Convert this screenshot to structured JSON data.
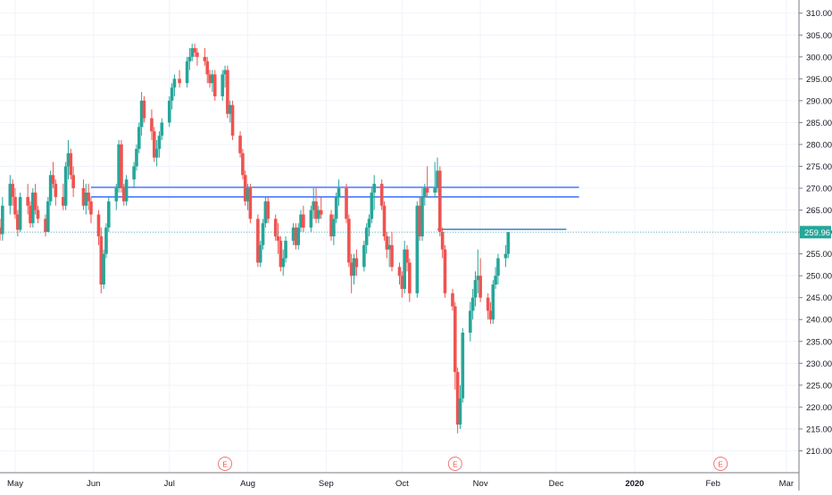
{
  "chart_data": {
    "type": "candlestick",
    "title": "",
    "xlabel": "",
    "ylabel": "",
    "ylim": [
      205,
      313
    ],
    "y_ticks": [
      "210.00",
      "215.00",
      "220.00",
      "225.00",
      "230.00",
      "235.00",
      "240.00",
      "245.00",
      "250.00",
      "255.00",
      "260.00",
      "265.00",
      "270.00",
      "275.00",
      "280.00",
      "285.00",
      "290.00",
      "295.00",
      "300.00",
      "305.00",
      "310.00"
    ],
    "x_labels": [
      {
        "label": "May",
        "date": "2019-05-01"
      },
      {
        "label": "Jun",
        "date": "2019-06-01"
      },
      {
        "label": "Jul",
        "date": "2019-07-01"
      },
      {
        "label": "Aug",
        "date": "2019-08-01"
      },
      {
        "label": "Sep",
        "date": "2019-09-01"
      },
      {
        "label": "Oct",
        "date": "2019-10-01"
      },
      {
        "label": "Nov",
        "date": "2019-11-01"
      },
      {
        "label": "Dec",
        "date": "2019-12-01"
      },
      {
        "label": "2020",
        "date": "2020-01-01"
      },
      {
        "label": "Feb",
        "date": "2020-02-01"
      },
      {
        "label": "Mar",
        "date": "2020-03-01"
      }
    ],
    "x_range": [
      "2019-04-25",
      "2020-03-06"
    ],
    "last_price": "259.96",
    "earnings_markers": [
      {
        "label": "E",
        "date": "2019-07-23"
      },
      {
        "label": "E",
        "date": "2019-10-22"
      },
      {
        "label": "E",
        "date": "2020-02-04"
      }
    ],
    "levels": [
      {
        "price": 270.2,
        "from": "2019-05-31",
        "to": "2019-12-10"
      },
      {
        "price": 268.0,
        "from": "2019-05-31",
        "to": "2019-12-10"
      },
      {
        "price": 260.6,
        "from": "2019-10-15",
        "to": "2019-12-05"
      }
    ],
    "colors": {
      "up": "#26a69a",
      "down": "#ef5350",
      "level": "#2962ff",
      "level_dark": "#1565c0",
      "price_label": "#26a69a",
      "earnings": "#ef5350"
    },
    "candles": [
      [
        "2019-04-25",
        261,
        263,
        258,
        259.5
      ],
      [
        "2019-04-26",
        259.5,
        268,
        258,
        266
      ],
      [
        "2019-04-29",
        266,
        273,
        264,
        271
      ],
      [
        "2019-04-30",
        271,
        272,
        266,
        268
      ],
      [
        "2019-05-01",
        268,
        270,
        263,
        264
      ],
      [
        "2019-05-02",
        264,
        265,
        259,
        260.5
      ],
      [
        "2019-05-03",
        260.5,
        269,
        260,
        268
      ],
      [
        "2019-05-06",
        268,
        271,
        264,
        266
      ],
      [
        "2019-05-07",
        266,
        267,
        261,
        262
      ],
      [
        "2019-05-08",
        262,
        270,
        261,
        269
      ],
      [
        "2019-05-09",
        269,
        271,
        264,
        265
      ],
      [
        "2019-05-10",
        265,
        266,
        262,
        263
      ],
      [
        "2019-05-13",
        263,
        264,
        259,
        260
      ],
      [
        "2019-05-14",
        260,
        268,
        260,
        267
      ],
      [
        "2019-05-15",
        267,
        274,
        266,
        273
      ],
      [
        "2019-05-16",
        273,
        276,
        270,
        271
      ],
      [
        "2019-05-17",
        271,
        272,
        266,
        268
      ],
      [
        "2019-05-20",
        268,
        271,
        265,
        266
      ],
      [
        "2019-05-21",
        266,
        276,
        265,
        275
      ],
      [
        "2019-05-22",
        275,
        281,
        272,
        278
      ],
      [
        "2019-05-23",
        278,
        279,
        272,
        273
      ],
      [
        "2019-05-24",
        273,
        275,
        268,
        270
      ],
      [
        "2019-05-28",
        270,
        272,
        265,
        266
      ],
      [
        "2019-05-29",
        266,
        271,
        264,
        269
      ],
      [
        "2019-05-30",
        269,
        271,
        265,
        267
      ],
      [
        "2019-05-31",
        267,
        268,
        262,
        264
      ],
      [
        "2019-06-03",
        264,
        265,
        257,
        259
      ],
      [
        "2019-06-04",
        259,
        261,
        246,
        248
      ],
      [
        "2019-06-05",
        248,
        256,
        247,
        255
      ],
      [
        "2019-06-06",
        255,
        262,
        254,
        261
      ],
      [
        "2019-06-07",
        261,
        268,
        260,
        267
      ],
      [
        "2019-06-10",
        267,
        271,
        265,
        270
      ],
      [
        "2019-06-11",
        270,
        281,
        269,
        280
      ],
      [
        "2019-06-12",
        280,
        281,
        269,
        270
      ],
      [
        "2019-06-13",
        270,
        271,
        266,
        267
      ],
      [
        "2019-06-14",
        267,
        273,
        266,
        272
      ],
      [
        "2019-06-17",
        272,
        276,
        270,
        275
      ],
      [
        "2019-06-18",
        275,
        280,
        274,
        279
      ],
      [
        "2019-06-19",
        279,
        285,
        278,
        284
      ],
      [
        "2019-06-20",
        284,
        292,
        282,
        290
      ],
      [
        "2019-06-21",
        290,
        291,
        285,
        286
      ],
      [
        "2019-06-24",
        286,
        288,
        281,
        283
      ],
      [
        "2019-06-25",
        283,
        284,
        276,
        277
      ],
      [
        "2019-06-26",
        277,
        281,
        275,
        279
      ],
      [
        "2019-06-27",
        279,
        283,
        277,
        282
      ],
      [
        "2019-06-28",
        282,
        286,
        281,
        285
      ],
      [
        "2019-07-01",
        285,
        291,
        284,
        290
      ],
      [
        "2019-07-02",
        290,
        294,
        288,
        293
      ],
      [
        "2019-07-03",
        293,
        296,
        291,
        295
      ],
      [
        "2019-07-05",
        295,
        297,
        293,
        294
      ],
      [
        "2019-07-08",
        294,
        300,
        293,
        299
      ],
      [
        "2019-07-09",
        299,
        302,
        297,
        300
      ],
      [
        "2019-07-10",
        300,
        303,
        299,
        302
      ],
      [
        "2019-07-11",
        302,
        303,
        300,
        301
      ],
      [
        "2019-07-12",
        301,
        302,
        298,
        300
      ],
      [
        "2019-07-15",
        300,
        302,
        298,
        299
      ],
      [
        "2019-07-16",
        299,
        300,
        294,
        296
      ],
      [
        "2019-07-17",
        296,
        297,
        293,
        294
      ],
      [
        "2019-07-18",
        294,
        297,
        292,
        296
      ],
      [
        "2019-07-19",
        296,
        297,
        290,
        291
      ],
      [
        "2019-07-22",
        291,
        297,
        290,
        296
      ],
      [
        "2019-07-23",
        296,
        298,
        293,
        297
      ],
      [
        "2019-07-24",
        297,
        298,
        286,
        287
      ],
      [
        "2019-07-25",
        287,
        290,
        285,
        289
      ],
      [
        "2019-07-26",
        289,
        290,
        281,
        282
      ],
      [
        "2019-07-29",
        282,
        283,
        277,
        278
      ],
      [
        "2019-07-30",
        278,
        279,
        272,
        273
      ],
      [
        "2019-07-31",
        273,
        274,
        266,
        267
      ],
      [
        "2019-08-01",
        267,
        271,
        265,
        270
      ],
      [
        "2019-08-02",
        270,
        271,
        262,
        263
      ],
      [
        "2019-08-05",
        263,
        264,
        252,
        253
      ],
      [
        "2019-08-06",
        253,
        258,
        252,
        257
      ],
      [
        "2019-08-07",
        257,
        263,
        256,
        262
      ],
      [
        "2019-08-08",
        262,
        268,
        261,
        267
      ],
      [
        "2019-08-09",
        267,
        268,
        262,
        263
      ],
      [
        "2019-08-12",
        263,
        264,
        258,
        259
      ],
      [
        "2019-08-13",
        259,
        262,
        255,
        258
      ],
      [
        "2019-08-14",
        258,
        259,
        251,
        252
      ],
      [
        "2019-08-15",
        252,
        256,
        250,
        254
      ],
      [
        "2019-08-16",
        254,
        259,
        253,
        258
      ],
      [
        "2019-08-19",
        258,
        262,
        257,
        261
      ],
      [
        "2019-08-20",
        261,
        262,
        256,
        257
      ],
      [
        "2019-08-21",
        257,
        262,
        256,
        261
      ],
      [
        "2019-08-22",
        261,
        265,
        260,
        264
      ],
      [
        "2019-08-23",
        264,
        266,
        260,
        261
      ],
      [
        "2019-08-26",
        261,
        266,
        260,
        265
      ],
      [
        "2019-08-27",
        265,
        270,
        263,
        267
      ],
      [
        "2019-08-28",
        267,
        270,
        262,
        263
      ],
      [
        "2019-08-29",
        263,
        266,
        262,
        265
      ],
      [
        "2019-08-30",
        265,
        268,
        263,
        264
      ],
      [
        "2019-09-03",
        264,
        265,
        258,
        259
      ],
      [
        "2019-09-04",
        259,
        264,
        257,
        263
      ],
      [
        "2019-09-05",
        263,
        269,
        262,
        268
      ],
      [
        "2019-09-06",
        268,
        272,
        266,
        270
      ],
      [
        "2019-09-09",
        270,
        271,
        262,
        263
      ],
      [
        "2019-09-10",
        263,
        264,
        252,
        253
      ],
      [
        "2019-09-11",
        253,
        255,
        246,
        250
      ],
      [
        "2019-09-12",
        250,
        255,
        248,
        254
      ],
      [
        "2019-09-13",
        254,
        256,
        250,
        252
      ],
      [
        "2019-09-16",
        252,
        258,
        251,
        257
      ],
      [
        "2019-09-17",
        257,
        262,
        255,
        261
      ],
      [
        "2019-09-18",
        261,
        264,
        259,
        263
      ],
      [
        "2019-09-19",
        263,
        270,
        262,
        269
      ],
      [
        "2019-09-20",
        269,
        273,
        265,
        271
      ],
      [
        "2019-09-23",
        271,
        272,
        265,
        266
      ],
      [
        "2019-09-24",
        266,
        267,
        258,
        259
      ],
      [
        "2019-09-25",
        259,
        260,
        254,
        256
      ],
      [
        "2019-09-26",
        256,
        259,
        252,
        257
      ],
      [
        "2019-09-27",
        257,
        260,
        251,
        252
      ],
      [
        "2019-09-30",
        252,
        253,
        248,
        250
      ],
      [
        "2019-10-01",
        250,
        251,
        245,
        247
      ],
      [
        "2019-10-02",
        247,
        258,
        246,
        256
      ],
      [
        "2019-10-03",
        256,
        257,
        251,
        253
      ],
      [
        "2019-10-04",
        253,
        254,
        244,
        246
      ],
      [
        "2019-10-07",
        246,
        267,
        245,
        266
      ],
      [
        "2019-10-08",
        266,
        268,
        258,
        259
      ],
      [
        "2019-10-09",
        259,
        270,
        258,
        268
      ],
      [
        "2019-10-10",
        268,
        271,
        266,
        270
      ],
      [
        "2019-10-11",
        270,
        275,
        268,
        269
      ],
      [
        "2019-10-14",
        269,
        276,
        268,
        270
      ],
      [
        "2019-10-15",
        270,
        277,
        269,
        274
      ],
      [
        "2019-10-16",
        274,
        275,
        259,
        260
      ],
      [
        "2019-10-17",
        260,
        261,
        254,
        256
      ],
      [
        "2019-10-18",
        256,
        257,
        245,
        246
      ],
      [
        "2019-10-21",
        246,
        247,
        242,
        243
      ],
      [
        "2019-10-22",
        243,
        244,
        224,
        228
      ],
      [
        "2019-10-23",
        228,
        229,
        214,
        216
      ],
      [
        "2019-10-24",
        216,
        225,
        215,
        222
      ],
      [
        "2019-10-25",
        222,
        238,
        221,
        237
      ],
      [
        "2019-10-28",
        237,
        244,
        235,
        242
      ],
      [
        "2019-10-29",
        242,
        247,
        240,
        245
      ],
      [
        "2019-10-30",
        245,
        251,
        243,
        249
      ],
      [
        "2019-10-31",
        249,
        256,
        246,
        250
      ],
      [
        "2019-11-01",
        250,
        254,
        244,
        245
      ],
      [
        "2019-11-04",
        245,
        246,
        240,
        242
      ],
      [
        "2019-11-05",
        242,
        244,
        239,
        240
      ],
      [
        "2019-11-06",
        240,
        249,
        239,
        248
      ],
      [
        "2019-11-07",
        248,
        252,
        247,
        250
      ],
      [
        "2019-11-08",
        250,
        255,
        248,
        254
      ],
      [
        "2019-11-11",
        254,
        257,
        252,
        255
      ],
      [
        "2019-11-12",
        255,
        260,
        254,
        259.96
      ]
    ]
  }
}
